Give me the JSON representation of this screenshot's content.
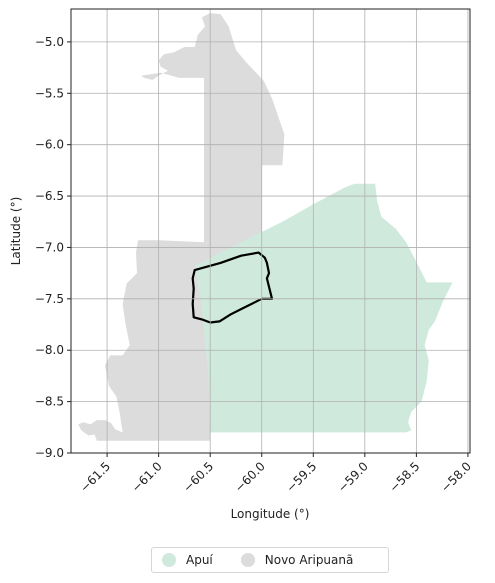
{
  "map": {
    "xlabel": "Longitude (°)",
    "ylabel": "Latitude (°)",
    "xlim": [
      -61.85,
      -57.98
    ],
    "ylim": [
      -9.0,
      -4.68
    ],
    "x_ticks": [
      -61.5,
      -61.0,
      -60.5,
      -60.0,
      -59.5,
      -59.0,
      -58.5,
      -58.0
    ],
    "x_tick_labels": [
      "−61.5",
      "−61.0",
      "−60.5",
      "−60.0",
      "−59.5",
      "−59.0",
      "−58.5",
      "−58.0"
    ],
    "y_ticks": [
      -5.0,
      -5.5,
      -6.0,
      -6.5,
      -7.0,
      -7.5,
      -8.0,
      -8.5,
      -9.0
    ],
    "y_tick_labels": [
      "−5.0",
      "−5.5",
      "−6.0",
      "−6.5",
      "−7.0",
      "−7.5",
      "−8.0",
      "−8.5",
      "−9.0"
    ],
    "grid": true,
    "regions": [
      {
        "name": "Novo Aripuanã",
        "color": "#dcdcdc",
        "polygon": [
          [
            -61.35,
            -8.8
          ],
          [
            -61.42,
            -8.77
          ],
          [
            -61.46,
            -8.71
          ],
          [
            -61.52,
            -8.68
          ],
          [
            -61.6,
            -8.68
          ],
          [
            -61.66,
            -8.72
          ],
          [
            -61.73,
            -8.7
          ],
          [
            -61.78,
            -8.72
          ],
          [
            -61.75,
            -8.78
          ],
          [
            -61.68,
            -8.83
          ],
          [
            -61.62,
            -8.82
          ],
          [
            -61.6,
            -8.88
          ],
          [
            -61.3,
            -8.88
          ],
          [
            -60.5,
            -8.88
          ],
          [
            -60.5,
            -8.4
          ],
          [
            -60.55,
            -7.8
          ],
          [
            -60.54,
            -7.25
          ],
          [
            -60.5,
            -7.22
          ],
          [
            -60.1,
            -7.02
          ],
          [
            -60.0,
            -6.98
          ],
          [
            -60.0,
            -6.2
          ],
          [
            -59.8,
            -6.2
          ],
          [
            -59.78,
            -5.9
          ],
          [
            -59.9,
            -5.55
          ],
          [
            -59.98,
            -5.38
          ],
          [
            -60.15,
            -5.2
          ],
          [
            -60.25,
            -5.08
          ],
          [
            -60.32,
            -4.85
          ],
          [
            -60.4,
            -4.73
          ],
          [
            -60.5,
            -4.72
          ],
          [
            -60.58,
            -4.76
          ],
          [
            -60.55,
            -4.85
          ],
          [
            -60.62,
            -4.93
          ],
          [
            -60.65,
            -5.05
          ],
          [
            -60.75,
            -5.05
          ],
          [
            -60.85,
            -5.1
          ],
          [
            -60.95,
            -5.12
          ],
          [
            -61.0,
            -5.18
          ],
          [
            -60.98,
            -5.24
          ],
          [
            -60.91,
            -5.28
          ],
          [
            -61.0,
            -5.33
          ],
          [
            -61.06,
            -5.37
          ],
          [
            -61.14,
            -5.35
          ],
          [
            -61.17,
            -5.33
          ],
          [
            -60.98,
            -5.3
          ],
          [
            -60.8,
            -5.35
          ],
          [
            -60.56,
            -5.35
          ],
          [
            -60.56,
            -6.95
          ],
          [
            -61.0,
            -6.93
          ],
          [
            -61.2,
            -6.93
          ],
          [
            -61.22,
            -7.05
          ],
          [
            -61.21,
            -7.25
          ],
          [
            -61.31,
            -7.35
          ],
          [
            -61.35,
            -7.55
          ],
          [
            -61.32,
            -7.75
          ],
          [
            -61.28,
            -7.95
          ],
          [
            -61.35,
            -8.05
          ],
          [
            -61.47,
            -8.05
          ],
          [
            -61.52,
            -8.15
          ],
          [
            -61.48,
            -8.35
          ],
          [
            -61.41,
            -8.45
          ],
          [
            -61.38,
            -8.6
          ]
        ]
      },
      {
        "name": "Apuí",
        "color": "#cfeadc",
        "polygon": [
          [
            -60.5,
            -8.8
          ],
          [
            -60.51,
            -8.5
          ],
          [
            -60.52,
            -8.2
          ],
          [
            -60.55,
            -7.9
          ],
          [
            -60.58,
            -7.6
          ],
          [
            -60.62,
            -7.35
          ],
          [
            -60.65,
            -7.18
          ],
          [
            -60.4,
            -7.05
          ],
          [
            -60.1,
            -6.9
          ],
          [
            -59.8,
            -6.75
          ],
          [
            -59.5,
            -6.58
          ],
          [
            -59.2,
            -6.42
          ],
          [
            -59.1,
            -6.38
          ],
          [
            -58.9,
            -6.38
          ],
          [
            -58.88,
            -6.55
          ],
          [
            -58.84,
            -6.7
          ],
          [
            -58.7,
            -6.82
          ],
          [
            -58.6,
            -6.95
          ],
          [
            -58.52,
            -7.1
          ],
          [
            -58.47,
            -7.2
          ],
          [
            -58.4,
            -7.34
          ],
          [
            -58.15,
            -7.34
          ],
          [
            -58.24,
            -7.52
          ],
          [
            -58.32,
            -7.72
          ],
          [
            -58.38,
            -7.8
          ],
          [
            -58.42,
            -7.95
          ],
          [
            -58.38,
            -8.1
          ],
          [
            -58.4,
            -8.3
          ],
          [
            -58.45,
            -8.5
          ],
          [
            -58.55,
            -8.6
          ],
          [
            -58.58,
            -8.7
          ],
          [
            -58.55,
            -8.78
          ],
          [
            -58.6,
            -8.8
          ]
        ]
      }
    ],
    "outline": {
      "color": "#000000",
      "polygon": [
        [
          -60.65,
          -7.22
        ],
        [
          -60.4,
          -7.15
        ],
        [
          -60.2,
          -7.08
        ],
        [
          -60.03,
          -7.05
        ],
        [
          -59.97,
          -7.1
        ],
        [
          -59.95,
          -7.15
        ],
        [
          -59.93,
          -7.25
        ],
        [
          -59.95,
          -7.3
        ],
        [
          -59.9,
          -7.5
        ],
        [
          -60.0,
          -7.5
        ],
        [
          -60.1,
          -7.55
        ],
        [
          -60.2,
          -7.6
        ],
        [
          -60.3,
          -7.65
        ],
        [
          -60.41,
          -7.72
        ],
        [
          -60.5,
          -7.73
        ],
        [
          -60.58,
          -7.7
        ],
        [
          -60.66,
          -7.68
        ],
        [
          -60.67,
          -7.55
        ],
        [
          -60.66,
          -7.4
        ],
        [
          -60.67,
          -7.3
        ]
      ]
    }
  },
  "legend": {
    "items": [
      {
        "label": "Apuí",
        "color": "#cfeadc"
      },
      {
        "label": "Novo Aripuanã",
        "color": "#dcdcdc"
      }
    ]
  }
}
